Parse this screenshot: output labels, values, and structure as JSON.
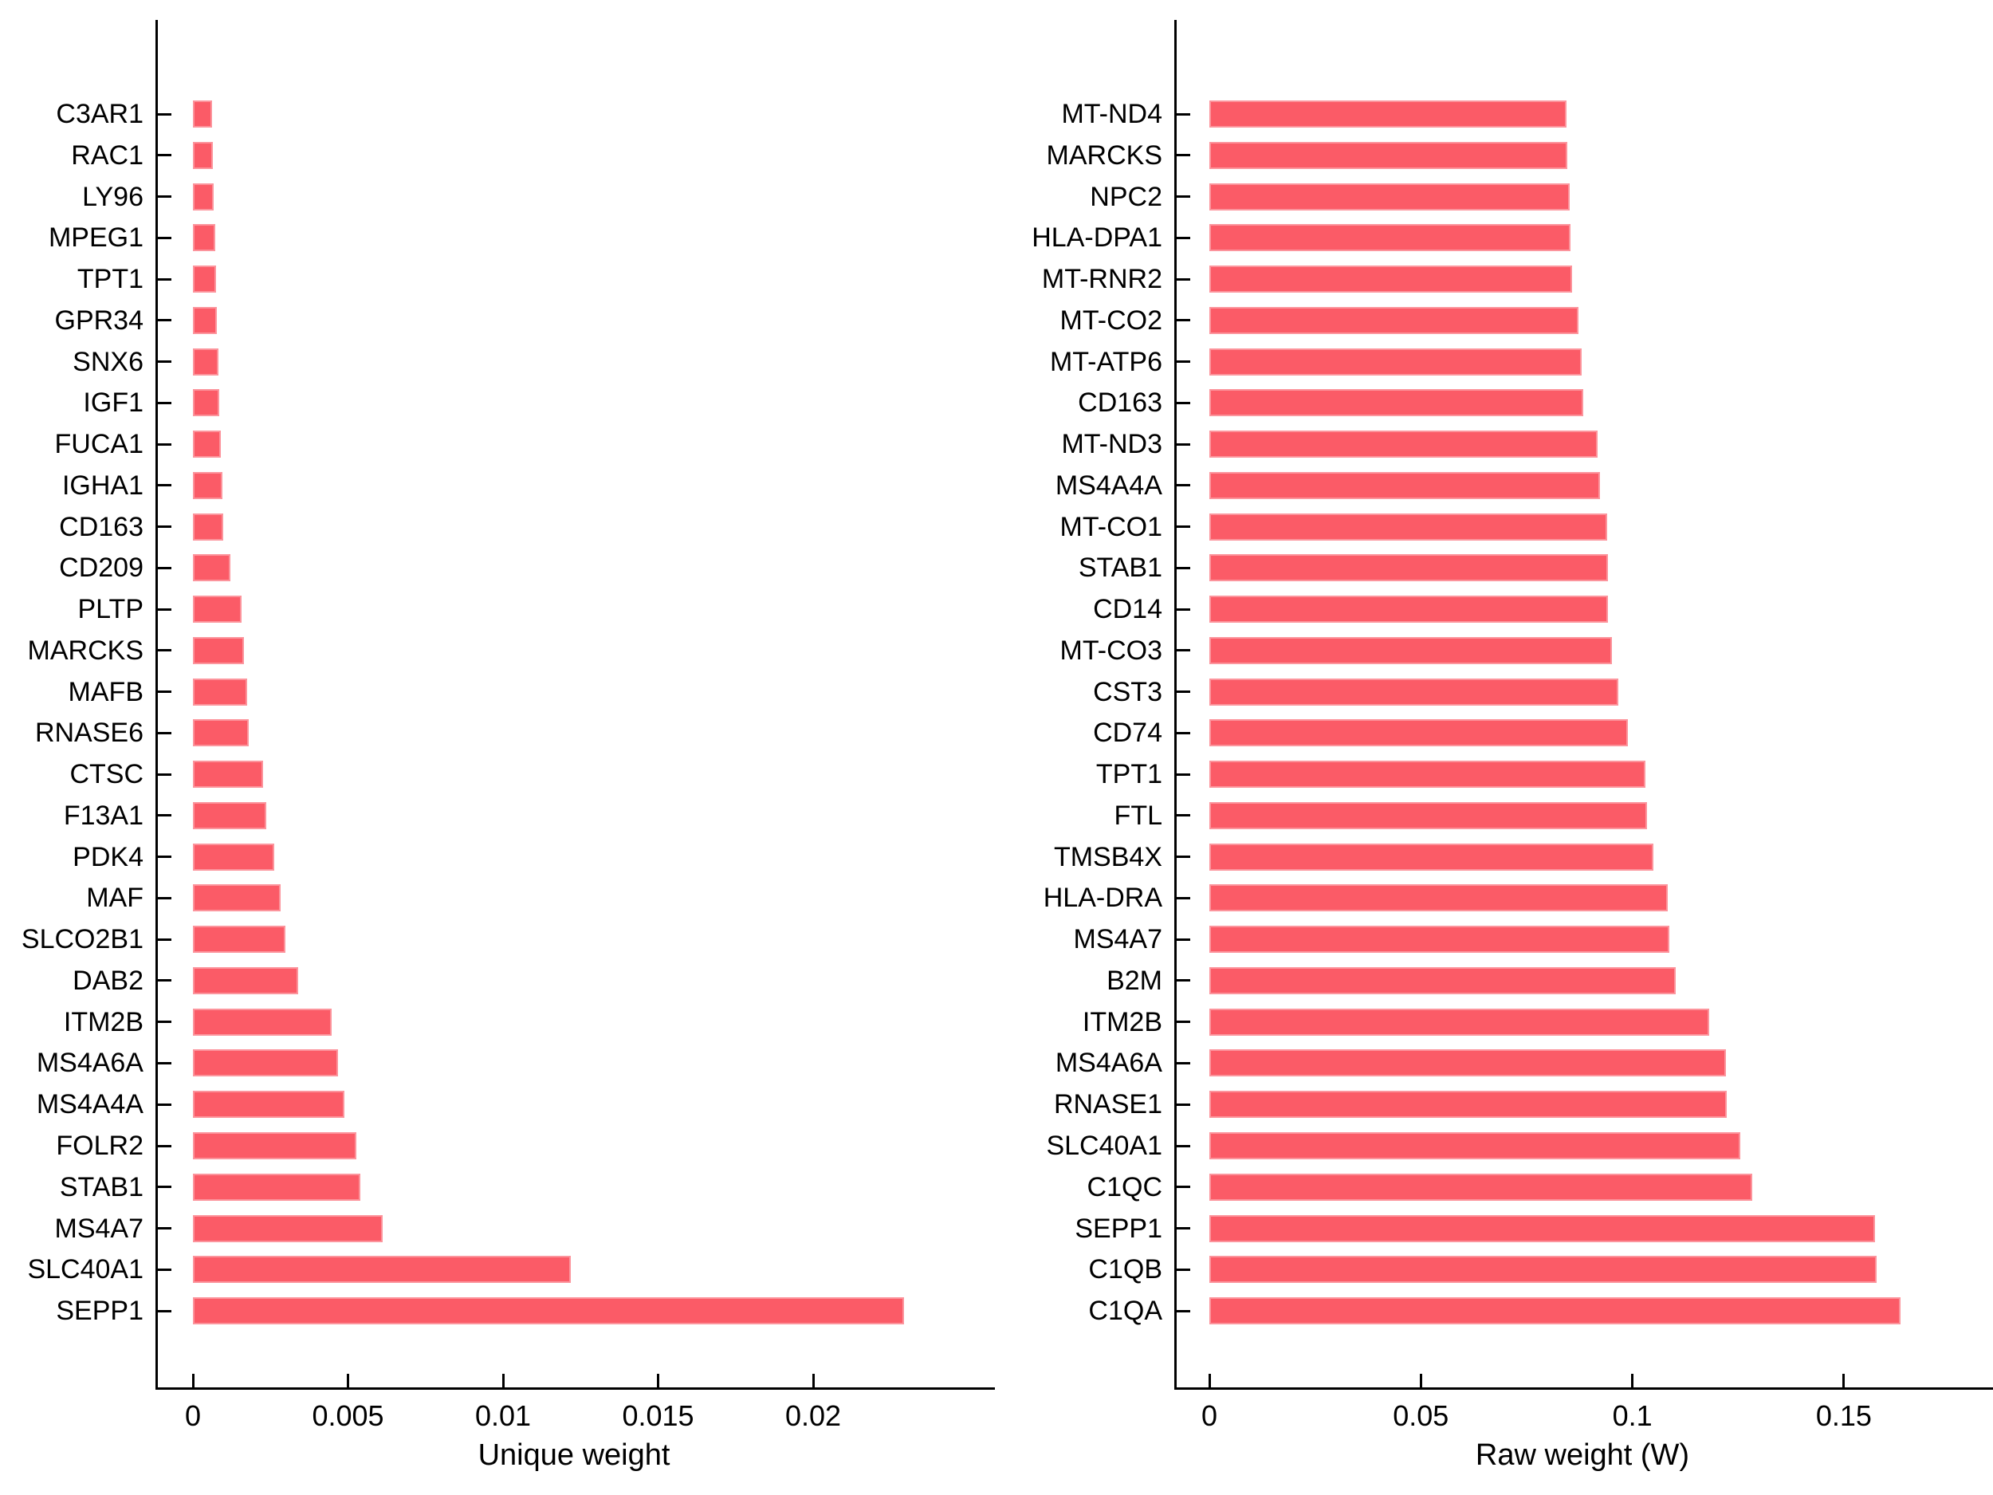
{
  "figure": {
    "background": "#ffffff",
    "text_color": "#000000",
    "bar_color": "#fb5b67"
  },
  "chart_data": [
    {
      "type": "bar",
      "orientation": "horizontal",
      "title": "",
      "xlabel": "Unique weight",
      "ylabel": "",
      "legend": null,
      "grid": false,
      "xlim": [
        0,
        0.0259
      ],
      "bar_color": "#fb5b67",
      "categories": [
        "C3AR1",
        "RAC1",
        "LY96",
        "MPEG1",
        "TPT1",
        "GPR34",
        "SNX6",
        "IGF1",
        "FUCA1",
        "IGHA1",
        "CD163",
        "CD209",
        "PLTP",
        "MARCKS",
        "MAFB",
        "RNASE6",
        "CTSC",
        "F13A1",
        "PDK4",
        "MAF",
        "SLCO2B1",
        "DAB2",
        "ITM2B",
        "MS4A6A",
        "MS4A4A",
        "FOLR2",
        "STAB1",
        "MS4A7",
        "SLC40A1",
        "SEPP1"
      ],
      "values": [
        0.00062,
        0.00063,
        0.00067,
        0.00072,
        0.00074,
        0.00077,
        0.00082,
        0.00084,
        0.00089,
        0.00095,
        0.00098,
        0.00122,
        0.00157,
        0.00164,
        0.00174,
        0.0018,
        0.00227,
        0.00236,
        0.00261,
        0.00282,
        0.00299,
        0.00339,
        0.00448,
        0.00467,
        0.00489,
        0.00527,
        0.0054,
        0.00612,
        0.01218,
        0.02293
      ],
      "xticks": [
        {
          "value": 0,
          "label": "0"
        },
        {
          "value": 0.005,
          "label": "0.005"
        },
        {
          "value": 0.01,
          "label": "0.01"
        },
        {
          "value": 0.015,
          "label": "0.015"
        },
        {
          "value": 0.02,
          "label": "0.02"
        }
      ]
    },
    {
      "type": "bar",
      "orientation": "horizontal",
      "title": "",
      "xlabel": "Raw weight (W)",
      "ylabel": "",
      "legend": null,
      "grid": false,
      "xlim": [
        0,
        0.186
      ],
      "bar_color": "#fb5b67",
      "categories": [
        "MT-ND4",
        "MARCKS",
        "NPC2",
        "HLA-DPA1",
        "MT-RNR2",
        "MT-CO2",
        "MT-ATP6",
        "CD163",
        "MT-ND3",
        "MS4A4A",
        "MT-CO1",
        "STAB1",
        "CD14",
        "MT-CO3",
        "CST3",
        "CD74",
        "TPT1",
        "FTL",
        "TMSB4X",
        "HLA-DRA",
        "MS4A7",
        "B2M",
        "ITM2B",
        "MS4A6A",
        "RNASE1",
        "SLC40A1",
        "C1QC",
        "SEPP1",
        "C1QB",
        "C1QA"
      ],
      "values": [
        0.0845,
        0.0846,
        0.0851,
        0.0854,
        0.0858,
        0.0872,
        0.088,
        0.0883,
        0.0917,
        0.0924,
        0.0941,
        0.0942,
        0.0943,
        0.0952,
        0.0966,
        0.099,
        0.103,
        0.1034,
        0.105,
        0.1084,
        0.1087,
        0.1103,
        0.1181,
        0.1221,
        0.1223,
        0.1255,
        0.1284,
        0.1574,
        0.1577,
        0.1634
      ],
      "xticks": [
        {
          "value": 0,
          "label": "0"
        },
        {
          "value": 0.05,
          "label": "0.05"
        },
        {
          "value": 0.1,
          "label": "0.1"
        },
        {
          "value": 0.15,
          "label": "0.15"
        }
      ]
    }
  ]
}
